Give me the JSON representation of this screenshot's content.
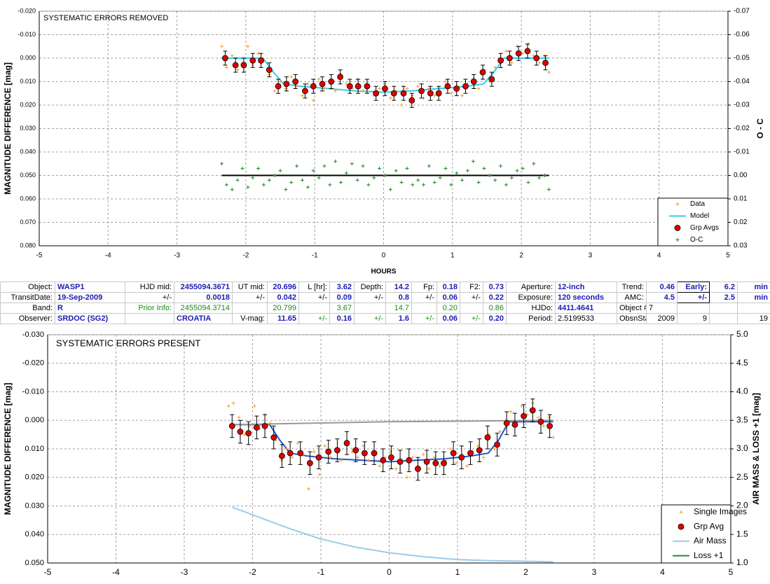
{
  "chart_data": [
    {
      "type": "scatter",
      "title": "SYSTEMATIC ERRORS REMOVED",
      "x_label": "HOURS",
      "y_label": "MAGNITUDE DIFFERENCE [mag]",
      "y2_label": "O - C",
      "xlim": [
        -5,
        5
      ],
      "xticks": [
        -5,
        -4,
        -3,
        -2,
        -1,
        0,
        1,
        2,
        3,
        4,
        5
      ],
      "ylim": [
        -0.02,
        0.08
      ],
      "y_inverted": true,
      "yticks": [
        {
          "value": -0.02,
          "label": "-0.020"
        },
        {
          "value": -0.01,
          "label": "-0.010"
        },
        {
          "value": 0,
          "label": "0.000"
        },
        {
          "value": 0.01,
          "label": "0.010"
        },
        {
          "value": 0.02,
          "label": "0.020"
        },
        {
          "value": 0.03,
          "label": "0.030"
        },
        {
          "value": 0.04,
          "label": "0.040"
        },
        {
          "value": 0.05,
          "label": "0.050"
        },
        {
          "value": 0.06,
          "label": "0.060"
        },
        {
          "value": 0.07,
          "label": "0.070"
        },
        {
          "value": 0.08,
          "label": "0.080"
        }
      ],
      "y2lim": [
        -0.07,
        0.03
      ],
      "y2_inverted": true,
      "y2ticks": [
        {
          "value": -0.07,
          "label": "-0.07"
        },
        {
          "value": -0.06,
          "label": "-0.06"
        },
        {
          "value": -0.05,
          "label": "-0.05"
        },
        {
          "value": -0.04,
          "label": "-0.04"
        },
        {
          "value": -0.03,
          "label": "-0.03"
        },
        {
          "value": -0.02,
          "label": "-0.02"
        },
        {
          "value": -0.01,
          "label": "-0.01"
        },
        {
          "value": 0,
          "label": "0.00"
        },
        {
          "value": 0.01,
          "label": "0.01"
        },
        {
          "value": 0.02,
          "label": "0.02"
        },
        {
          "value": 0.03,
          "label": "0.03"
        }
      ],
      "grid": true,
      "legend": "lower right",
      "series": [
        {
          "name": "Data",
          "color": "#f0a030",
          "style": "plus",
          "x": [
            -2.35,
            -2.28,
            -2.2,
            -2.12,
            -2.05,
            -1.97,
            -1.9,
            -1.82,
            -1.74,
            -1.66,
            -1.58,
            -1.5,
            -1.42,
            -1.34,
            -1.26,
            -1.18,
            -1.1,
            -1.02,
            -0.94,
            -0.86,
            -0.78,
            -0.7,
            -0.62,
            -0.54,
            -0.46,
            -0.38,
            -0.3,
            -0.22,
            -0.14,
            -0.06,
            0.02,
            0.1,
            0.18,
            0.26,
            0.34,
            0.42,
            0.5,
            0.58,
            0.66,
            0.74,
            0.82,
            0.9,
            0.98,
            1.06,
            1.14,
            1.22,
            1.3,
            1.38,
            1.46,
            1.54,
            1.62,
            1.7,
            1.78,
            1.86,
            1.94,
            2.02,
            2.1,
            2.18,
            2.26,
            2.34,
            2.4
          ],
          "values": [
            -0.005,
            0.004,
            -0.001,
            0.005,
            0.002,
            -0.005,
            0.003,
            -0.002,
            0.001,
            0.007,
            0.014,
            0.01,
            0.013,
            0.008,
            0.012,
            0.016,
            0.011,
            0.018,
            0.009,
            0.013,
            0.01,
            0.014,
            0.007,
            0.011,
            0.013,
            0.009,
            0.014,
            0.012,
            0.016,
            0.013,
            0.011,
            0.017,
            0.014,
            0.02,
            0.013,
            0.016,
            0.012,
            0.017,
            0.013,
            0.016,
            0.014,
            0.01,
            0.015,
            0.012,
            0.016,
            0.011,
            0.009,
            0.013,
            0.005,
            0.01,
            0.004,
            0.0,
            -0.003,
            0.002,
            -0.005,
            -0.002,
            -0.006,
            -0.001,
            0.002,
            -0.001,
            0.006
          ]
        },
        {
          "name": "Model",
          "color": "#33ccee",
          "style": "line",
          "x": [
            -2.35,
            -1.75,
            -1.6,
            -1.45,
            -1.2,
            -0.8,
            -0.4,
            0,
            0.4,
            0.8,
            1.2,
            1.45,
            1.6,
            1.75,
            2.4
          ],
          "values": [
            0,
            0,
            0.006,
            0.011,
            0.012,
            0.013,
            0.014,
            0.0145,
            0.014,
            0.013,
            0.012,
            0.011,
            0.006,
            0,
            0
          ]
        },
        {
          "name": "Grp Avgs",
          "color": "#e00000",
          "style": "circle",
          "x": [
            -2.3,
            -2.15,
            -2.03,
            -1.9,
            -1.78,
            -1.66,
            -1.53,
            -1.41,
            -1.28,
            -1.14,
            -1.02,
            -0.89,
            -0.76,
            -0.63,
            -0.49,
            -0.37,
            -0.24,
            -0.11,
            0.02,
            0.15,
            0.29,
            0.41,
            0.55,
            0.68,
            0.8,
            0.93,
            1.06,
            1.19,
            1.31,
            1.44,
            1.57,
            1.7,
            1.83,
            1.96,
            2.09,
            2.22,
            2.35
          ],
          "values": [
            0,
            0.003,
            0.003,
            0.001,
            0.001,
            0.005,
            0.012,
            0.011,
            0.01,
            0.014,
            0.012,
            0.011,
            0.01,
            0.008,
            0.012,
            0.012,
            0.012,
            0.015,
            0.013,
            0.015,
            0.015,
            0.018,
            0.014,
            0.015,
            0.015,
            0.012,
            0.013,
            0.012,
            0.01,
            0.006,
            0.009,
            0.001,
            0,
            -0.002,
            -0.003,
            0,
            0.002
          ],
          "errors": [
            0.003,
            0.003,
            0.003,
            0.003,
            0.003,
            0.003,
            0.003,
            0.003,
            0.003,
            0.003,
            0.003,
            0.003,
            0.003,
            0.003,
            0.003,
            0.003,
            0.003,
            0.003,
            0.003,
            0.003,
            0.003,
            0.003,
            0.003,
            0.003,
            0.003,
            0.003,
            0.003,
            0.003,
            0.003,
            0.003,
            0.003,
            0.003,
            0.003,
            0.003,
            0.003,
            0.003,
            0.003
          ]
        },
        {
          "name": "O-C",
          "color": "#1a8c1a",
          "style": "plus",
          "axis": "y2",
          "x": [
            -2.35,
            -2.28,
            -2.2,
            -2.12,
            -2.05,
            -1.97,
            -1.9,
            -1.82,
            -1.74,
            -1.66,
            -1.58,
            -1.5,
            -1.42,
            -1.34,
            -1.26,
            -1.18,
            -1.1,
            -1.02,
            -0.94,
            -0.86,
            -0.78,
            -0.7,
            -0.62,
            -0.54,
            -0.46,
            -0.38,
            -0.3,
            -0.22,
            -0.14,
            -0.06,
            0.02,
            0.1,
            0.18,
            0.26,
            0.34,
            0.42,
            0.5,
            0.58,
            0.66,
            0.74,
            0.82,
            0.9,
            0.98,
            1.06,
            1.14,
            1.22,
            1.3,
            1.38,
            1.46,
            1.54,
            1.62,
            1.7,
            1.78,
            1.86,
            1.94,
            2.02,
            2.1,
            2.18,
            2.26,
            2.34,
            2.4
          ],
          "values": [
            -0.005,
            0.004,
            0.006,
            0.002,
            -0.003,
            0.005,
            0.001,
            -0.003,
            0.004,
            0.002,
            0.0,
            -0.002,
            0.006,
            0.003,
            -0.004,
            0.002,
            0.005,
            -0.002,
            0.001,
            -0.004,
            0.004,
            -0.006,
            0.003,
            -0.001,
            -0.005,
            0.002,
            -0.004,
            0.004,
            0.001,
            -0.003,
            0.0,
            0.006,
            -0.002,
            0.003,
            -0.003,
            0.004,
            0.002,
            0.004,
            -0.004,
            0.003,
            0.001,
            -0.003,
            0.004,
            -0.001,
            0.002,
            -0.002,
            -0.006,
            0.003,
            -0.003,
            0.0,
            0.002,
            -0.004,
            0.004,
            0.001,
            -0.002,
            -0.003,
            0.003,
            -0.005,
            0.001,
            0.0,
            0.006
          ]
        },
        {
          "color": "#000000",
          "style": "line",
          "axis": "y2",
          "x": [
            -2.35,
            2.4
          ],
          "values": [
            0,
            0
          ]
        }
      ]
    },
    {
      "type": "scatter",
      "title": "SYSTEMATIC ERRORS PRESENT",
      "y_label": "MAGNITUDE DIFFERENCE [mag]",
      "y2_label": "AIR MASS & LOSS +1 [mag]",
      "xlim": [
        -5,
        5
      ],
      "xticks": [
        -5,
        -4,
        -3,
        -2,
        -1,
        0,
        1,
        2,
        3,
        4,
        5
      ],
      "ylim": [
        -0.03,
        0.05
      ],
      "y_inverted": true,
      "yticks": [
        {
          "value": -0.03,
          "label": "-0.030"
        },
        {
          "value": -0.02,
          "label": "-0.020"
        },
        {
          "value": -0.01,
          "label": "-0.010"
        },
        {
          "value": 0,
          "label": "0.000"
        },
        {
          "value": 0.01,
          "label": "0.010"
        },
        {
          "value": 0.02,
          "label": "0.020"
        },
        {
          "value": 0.03,
          "label": "0.030"
        },
        {
          "value": 0.04,
          "label": "0.040"
        },
        {
          "value": 0.05,
          "label": "0.050"
        }
      ],
      "y2lim": [
        1,
        5
      ],
      "y2_inverted": false,
      "y2ticks": [
        {
          "value": 1,
          "label": "1.0"
        },
        1.5,
        {
          "value": 2,
          "label": "2.0"
        },
        2.5,
        {
          "value": 3,
          "label": "3.0"
        },
        3.5,
        {
          "value": 4,
          "label": "4.0"
        },
        4.5,
        {
          "value": 5,
          "label": "5.0"
        }
      ],
      "grid": true,
      "legend": "lower right",
      "series": [
        {
          "name": "Single Images",
          "color": "#f0a030",
          "style": "plus",
          "x": [
            -2.35,
            -2.28,
            -2.2,
            -2.12,
            -2.05,
            -1.97,
            -1.9,
            -1.82,
            -1.74,
            -1.66,
            -1.58,
            -1.5,
            -1.42,
            -1.34,
            -1.26,
            -1.18,
            -1.1,
            -1.02,
            -0.94,
            -0.86,
            -0.78,
            -0.7,
            -0.62,
            -0.54,
            -0.46,
            -0.38,
            -0.3,
            -0.22,
            -0.14,
            -0.06,
            0.02,
            0.1,
            0.18,
            0.26,
            0.34,
            0.42,
            0.5,
            0.58,
            0.66,
            0.74,
            0.82,
            0.9,
            0.98,
            1.06,
            1.14,
            1.22,
            1.3,
            1.38,
            1.46,
            1.54,
            1.62,
            1.7,
            1.78,
            1.86,
            1.94,
            2.02,
            2.1,
            2.18,
            2.26,
            2.34,
            2.4
          ],
          "values": [
            -0.005,
            -0.006,
            -0.001,
            0.005,
            0.002,
            -0.005,
            0.003,
            -0.002,
            0.001,
            0.007,
            0.014,
            0.01,
            0.013,
            0.008,
            0.012,
            0.024,
            0.011,
            0.019,
            0.009,
            0.013,
            0.01,
            0.014,
            0.007,
            0.011,
            0.013,
            0.009,
            0.014,
            0.012,
            0.016,
            0.013,
            0.011,
            0.017,
            0.014,
            0.02,
            0.013,
            0.016,
            0.012,
            0.017,
            0.013,
            0.016,
            0.014,
            0.01,
            0.015,
            0.012,
            0.016,
            0.011,
            0.009,
            0.013,
            0.005,
            0.01,
            0.004,
            0.0,
            -0.003,
            0.002,
            -0.005,
            -0.002,
            -0.006,
            -0.001,
            0.002,
            -0.001,
            0.006
          ]
        },
        {
          "name": "Grp Avg",
          "color": "#e00000",
          "style": "circle",
          "x": [
            -2.3,
            -2.18,
            -2.06,
            -1.94,
            -1.82,
            -1.69,
            -1.57,
            -1.45,
            -1.3,
            -1.16,
            -1.03,
            -0.89,
            -0.76,
            -0.62,
            -0.49,
            -0.36,
            -0.22,
            -0.09,
            0.03,
            0.16,
            0.29,
            0.42,
            0.55,
            0.68,
            0.8,
            0.94,
            1.06,
            1.19,
            1.32,
            1.44,
            1.58,
            1.72,
            1.84,
            1.97,
            2.1,
            2.22,
            2.35
          ],
          "values": [
            0.002,
            0.004,
            0.0045,
            0.0025,
            0.002,
            0.006,
            0.0125,
            0.0115,
            0.0115,
            0.015,
            0.013,
            0.011,
            0.0105,
            0.008,
            0.0105,
            0.0115,
            0.0115,
            0.014,
            0.013,
            0.0145,
            0.014,
            0.017,
            0.0145,
            0.015,
            0.015,
            0.0115,
            0.013,
            0.0115,
            0.0105,
            0.006,
            0.0085,
            0.001,
            0.0015,
            -0.0015,
            -0.0035,
            0.0005,
            0.002
          ],
          "errors": [
            0.004,
            0.004,
            0.004,
            0.004,
            0.004,
            0.004,
            0.004,
            0.004,
            0.004,
            0.004,
            0.004,
            0.004,
            0.004,
            0.004,
            0.004,
            0.004,
            0.004,
            0.004,
            0.004,
            0.004,
            0.004,
            0.004,
            0.004,
            0.004,
            0.004,
            0.004,
            0.004,
            0.004,
            0.004,
            0.004,
            0.004,
            0.004,
            0.004,
            0.004,
            0.004,
            0.004,
            0.004
          ]
        },
        {
          "name": "Air Mass",
          "color": "#99ccee",
          "style": "line",
          "axis": "y2",
          "x": [
            -2.3,
            -1.5,
            -1,
            -0.5,
            0,
            0.5,
            1,
            1.5,
            2,
            2.4
          ],
          "values": [
            1.98,
            1.62,
            1.42,
            1.28,
            1.18,
            1.11,
            1.06,
            1.04,
            1.03,
            1.02
          ]
        },
        {
          "name": "Loss +1",
          "color": "#2a8a2a",
          "style": "line",
          "axis": "y2"
        },
        {
          "color": "#2255cc",
          "style": "line",
          "x": [
            -2.3,
            -1.75,
            -1.6,
            -1.45,
            -1.2,
            -0.8,
            -0.4,
            0,
            0.4,
            0.8,
            1.2,
            1.45,
            1.6,
            1.75,
            2.4
          ],
          "values": [
            0.0015,
            0.0015,
            0.007,
            0.0115,
            0.0125,
            0.0135,
            0.014,
            0.0145,
            0.014,
            0.0135,
            0.0125,
            0.0115,
            0.007,
            0.0005,
            0.0005
          ]
        },
        {
          "color": "#999999",
          "style": "line",
          "x": [
            -2.3,
            0,
            2.4
          ],
          "values": [
            0.0015,
            0.0005,
            0
          ]
        }
      ]
    }
  ],
  "table": {
    "rows": [
      [
        "Object:",
        "WASP1",
        "HJD mid:",
        "2455094.3671",
        "UT mid:",
        "20.696",
        "L [hr]:",
        "3.62",
        "Depth:",
        "14.2",
        "Fp:",
        "0.18",
        "F2:",
        "0.73",
        "Aperture:",
        "12-inch",
        "Trend:",
        "0.46",
        "Early:",
        "6.2",
        "min"
      ],
      [
        "TransitDate:",
        "19-Sep-2009",
        "+/-",
        "0.0018",
        "+/-",
        "0.042",
        "+/-",
        "0.09",
        "+/-",
        "0.8",
        "+/-",
        "0.06",
        "+/-",
        "0.22",
        "Exposure:",
        "120 seconds",
        "AMC:",
        "4.5",
        "+/-",
        "2.5",
        "min"
      ],
      [
        "Band:",
        "R",
        "Prior Info:",
        "2455094.3714",
        "20.799",
        "3.67",
        "14.7",
        "0.20",
        "0.86",
        "HJDo:",
        "4411.4641",
        "Object #:",
        "7"
      ],
      [
        "Observer:",
        "SRDOC (SG2)",
        "CROATIA",
        "V-mag:",
        "11.65",
        "+/-",
        "0.16",
        "+/-",
        "1.6",
        "+/-",
        "0.06",
        "+/-",
        "0.20",
        "Period:",
        "2.5199533",
        "ObsnStartDate:",
        "2009",
        "9",
        "19"
      ]
    ]
  }
}
